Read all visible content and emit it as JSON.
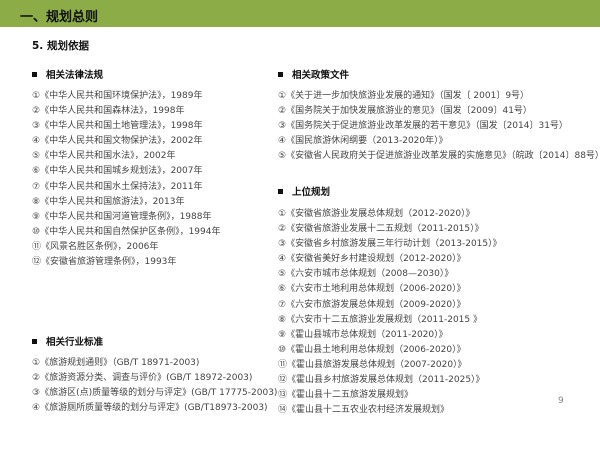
{
  "header": {
    "title": "一、规划总则"
  },
  "subtitle": "5. 规划依据",
  "laws": {
    "heading": "相关法律法规",
    "items": [
      "①《中华人民共和国环境保护法》，1989年",
      "②《中华人民共和国森林法》，1998年",
      "③《中华人民共和国土地管理法》，1998年",
      "④《中华人民共和国文物保护法》，2002年",
      "⑤《中华人民共和国水法》，2002年",
      "⑥《中华人民共和国城乡规划法》，2007年",
      "⑦《中华人民共和国水土保持法》，2011年",
      "⑧《中华人民共和国旅游法》，2013年",
      "⑨《中华人民共和国河道管理条例》，1988年",
      "⑩《中华人民共和国自然保护区条例》，1994年",
      "⑪《风景名胜区条例》，2006年",
      "⑫《安徽省旅游管理条例》，1993年"
    ]
  },
  "standards": {
    "heading": "相关行业标准",
    "items": [
      "①《旅游规划通则》（GB/T 18971-2003)",
      "②《旅游资源分类、调查与评价》(GB/T 18972-2003)",
      "③《旅游区(点)质量等级的划分与评定》(GB/T 17775-2003)",
      "④《旅游厕所质量等级的划分与评定》(GB/T18973-2003)"
    ]
  },
  "policies": {
    "heading": "相关政策文件",
    "items": [
      "①《关于进一步加快旅游业发展的通知》（国发〔 2001〕9号）",
      "②《国务院关于加快发展旅游业的意见》（国发〔2009〕41号）",
      "③《国务院关于促进旅游业改革发展的若干意见》（国发〔2014〕31号）",
      "④《国民旅游休闲纲要（2013-2020年）》",
      "⑤《安徽省人民政府关于促进旅游业改革发展的实施意见》（皖政〔2014〕88号）"
    ]
  },
  "plans": {
    "heading": "上位规划",
    "items": [
      "①《安徽省旅游业发展总体规划（2012-2020）》",
      "②《安徽省旅游业发展十二五规划（2011-2015）》",
      "③《安徽省乡村旅游发展三年行动计划（2013-2015）》",
      "④《安徽省美好乡村建设规划（2012-2020）》",
      "⑤《六安市城市总体规划（2008—2030）》",
      "⑥《六安市土地利用总体规划（2006-2020）》",
      "⑦《六安市旅游发展总体规划（2009-2020）》",
      "⑧《六安市十二五旅游业发展规划（2011-2015 》",
      "⑨《霍山县城市总体规划（2011-2020）》",
      "⑩《霍山县土地利用总体规划（2006-2020）》",
      "⑪《霍山县旅游发展总体规划（2007-2020）》",
      "⑫《霍山县乡村旅游发展总体规划（2011-2025）》",
      "⑬《霍山县十二五旅游发展规划》",
      "⑭《霍山县十二五农业农村经济发展规划》"
    ]
  },
  "page_number": "9",
  "colors": {
    "header": "#8bac47"
  }
}
